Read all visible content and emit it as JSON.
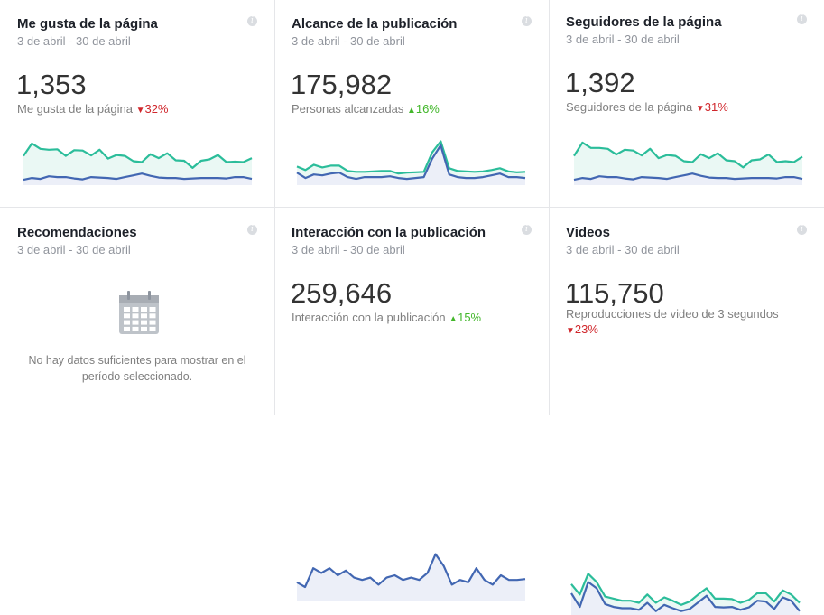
{
  "colors": {
    "teal": "#2bbd9a",
    "blue": "#4267b2",
    "down": "#d0272c",
    "up": "#42b72a"
  },
  "cards": [
    {
      "title": "Me gusta de la página",
      "date": "3 de abril - 30 de abril",
      "value": "1,353",
      "subtitle": "Me gusta de la página",
      "change": "32%",
      "trend": "down",
      "series": {
        "teal": [
          62,
          90,
          78,
          76,
          77,
          62,
          75,
          74,
          63,
          76,
          56,
          64,
          62,
          50,
          48,
          66,
          57,
          68,
          52,
          51,
          35,
          51,
          54,
          64,
          48,
          49,
          48,
          57
        ],
        "blue": [
          8,
          12,
          10,
          16,
          14,
          14,
          11,
          9,
          14,
          13,
          12,
          10,
          14,
          18,
          22,
          17,
          13,
          12,
          12,
          10,
          11,
          12,
          12,
          12,
          11,
          14,
          14,
          10
        ]
      }
    },
    {
      "title": "Alcance de la publicación",
      "date": "3 de abril - 30 de abril",
      "value": "175,982",
      "subtitle": "Personas alcanzadas",
      "change": "16%",
      "trend": "up",
      "series": {
        "teal": [
          38,
          30,
          42,
          36,
          40,
          40,
          28,
          26,
          26,
          27,
          28,
          28,
          22,
          24,
          25,
          26,
          70,
          95,
          34,
          28,
          27,
          26,
          27,
          30,
          34,
          27,
          25,
          26
        ],
        "blue": [
          24,
          12,
          20,
          18,
          22,
          24,
          14,
          10,
          14,
          14,
          14,
          16,
          12,
          10,
          12,
          14,
          56,
          86,
          20,
          14,
          12,
          12,
          14,
          18,
          22,
          14,
          14,
          12
        ]
      }
    },
    {
      "title": "Seguidores de la página",
      "date": "3 de abril - 30 de abril",
      "value": "1,392",
      "subtitle": "Seguidores de la página",
      "change": "31%",
      "trend": "down",
      "series": {
        "teal": [
          62,
          92,
          80,
          80,
          78,
          65,
          76,
          74,
          63,
          78,
          57,
          64,
          62,
          50,
          48,
          66,
          57,
          68,
          52,
          50,
          36,
          52,
          54,
          65,
          48,
          50,
          48,
          60
        ],
        "blue": [
          8,
          12,
          10,
          16,
          14,
          14,
          11,
          9,
          14,
          13,
          12,
          10,
          14,
          18,
          22,
          17,
          13,
          12,
          12,
          10,
          11,
          12,
          12,
          12,
          11,
          14,
          14,
          10
        ]
      }
    },
    {
      "title": "Recomendaciones",
      "date": "3 de abril - 30 de abril",
      "nodata": "No hay datos suficientes para mostrar en el período seleccionado."
    },
    {
      "title": "Interacción con la publicación",
      "date": "3 de abril - 30 de abril",
      "value": "259,646",
      "subtitle": "Interacción con la publicación",
      "change": "15%",
      "trend": "up",
      "series": {
        "blue": [
          35,
          25,
          65,
          55,
          65,
          50,
          60,
          45,
          40,
          45,
          30,
          45,
          50,
          40,
          45,
          40,
          55,
          95,
          70,
          30,
          40,
          35,
          65,
          40,
          30,
          50,
          40,
          40,
          42
        ]
      }
    },
    {
      "title": "Videos",
      "date": "3 de abril - 30 de abril",
      "value": "115,750",
      "subtitle": "Reproducciones de video de 3 segundos",
      "change": "23%",
      "trend": "down",
      "series": {
        "teal": [
          70,
          45,
          95,
          75,
          40,
          35,
          30,
          30,
          25,
          45,
          25,
          38,
          30,
          20,
          28,
          45,
          60,
          35,
          35,
          34,
          25,
          32,
          48,
          48,
          28,
          55,
          45,
          25
        ],
        "blue": [
          48,
          15,
          75,
          60,
          22,
          15,
          12,
          12,
          8,
          25,
          5,
          20,
          12,
          5,
          10,
          26,
          42,
          15,
          14,
          15,
          8,
          14,
          30,
          28,
          10,
          38,
          30,
          5
        ]
      }
    }
  ]
}
